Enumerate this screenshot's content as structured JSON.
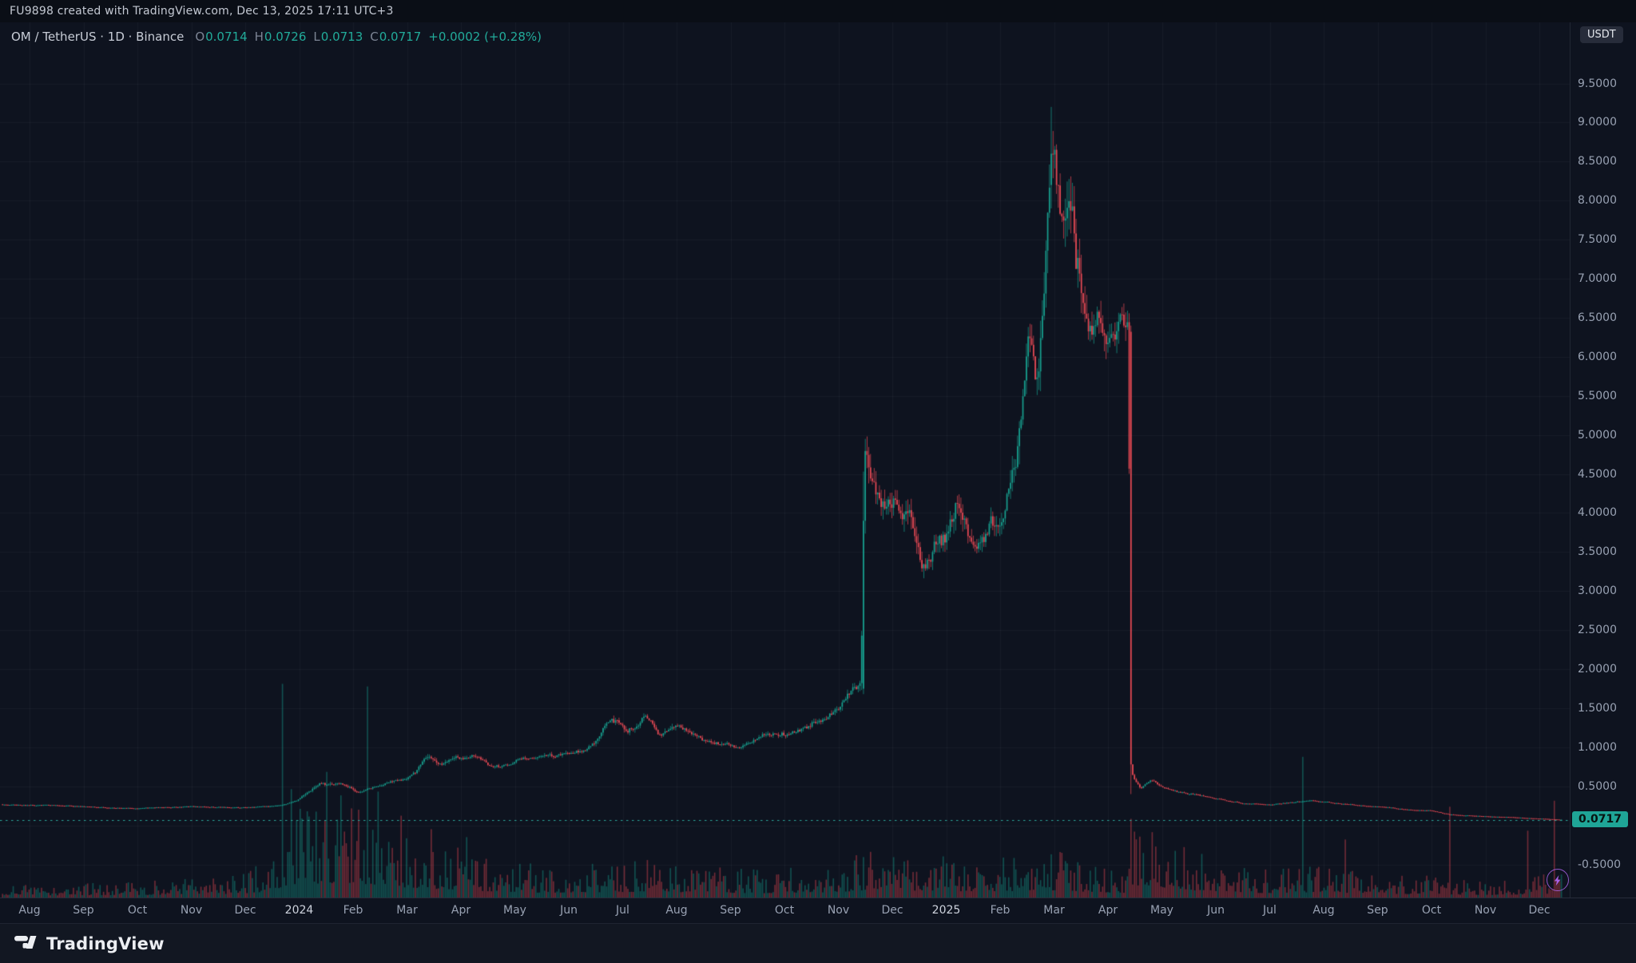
{
  "topbar": {
    "attribution": "FU9898 created with TradingView.com, Dec 13, 2025 17:11 UTC+3"
  },
  "legend": {
    "symbol_title": "OM / TetherUS · 1D · Binance",
    "ohlc": [
      {
        "label": "O",
        "value": "0.0714"
      },
      {
        "label": "H",
        "value": "0.0726"
      },
      {
        "label": "L",
        "value": "0.0713"
      },
      {
        "label": "C",
        "value": "0.0717"
      }
    ],
    "change": "+0.0002 (+0.28%)"
  },
  "price_scale": {
    "currency_badge": "USDT",
    "last_price_label": "0.0717",
    "ticks": [
      "9.5000",
      "9.0000",
      "8.5000",
      "8.0000",
      "7.5000",
      "7.0000",
      "6.5000",
      "6.0000",
      "5.5000",
      "5.0000",
      "4.5000",
      "4.0000",
      "3.5000",
      "3.0000",
      "2.5000",
      "2.0000",
      "1.5000",
      "1.0000",
      "0.5000",
      "-0.5000"
    ]
  },
  "footer": {
    "brand": "TradingView"
  },
  "colors": {
    "background": "#0e131f",
    "grid": "rgba(140,152,177,0.07)",
    "up": "#17a08f",
    "down": "#ea4a55",
    "vol_up": "rgba(23,160,143,0.45)",
    "vol_down": "rgba(234,74,85,0.45)",
    "price_line": "#2aa79b",
    "axis_text": "#98a1b2",
    "flash_icon": "#a761e6"
  },
  "chart_data": {
    "type": "candlestick",
    "title": "OM / TetherUS 1D Binance",
    "quote_currency": "USDT",
    "last_close": 0.0717,
    "y_axis": {
      "tick_step": 0.5,
      "visible_range": [
        -0.9,
        10.2
      ],
      "grid": true
    },
    "x_axis": {
      "months": [
        "Aug",
        "Sep",
        "Oct",
        "Nov",
        "Dec",
        "2024",
        "Feb",
        "Mar",
        "Apr",
        "May",
        "Jun",
        "Jul",
        "Aug",
        "Sep",
        "Oct",
        "Nov",
        "Dec",
        "2025",
        "Feb",
        "Mar",
        "Apr",
        "May",
        "Jun",
        "Jul",
        "Aug",
        "Sep",
        "Oct",
        "Nov",
        "Dec"
      ]
    },
    "start_m": -0.5,
    "end_m": 28.42,
    "seed": 7,
    "price_keyframes": [
      [
        -0.5,
        0.27,
        0.035
      ],
      [
        0,
        0.26,
        0.035
      ],
      [
        1,
        0.235,
        0.035
      ],
      [
        2,
        0.22,
        0.03
      ],
      [
        3,
        0.245,
        0.035
      ],
      [
        4,
        0.225,
        0.035
      ],
      [
        4.7,
        0.25,
        0.05
      ],
      [
        5,
        0.32,
        0.07
      ],
      [
        5.4,
        0.55,
        0.08
      ],
      [
        5.8,
        0.52,
        0.06
      ],
      [
        6.1,
        0.44,
        0.06
      ],
      [
        6.5,
        0.5,
        0.05
      ],
      [
        7,
        0.62,
        0.06
      ],
      [
        7.4,
        0.92,
        0.07
      ],
      [
        7.6,
        0.8,
        0.06
      ],
      [
        8,
        0.86,
        0.05
      ],
      [
        8.3,
        0.95,
        0.05
      ],
      [
        8.6,
        0.78,
        0.05
      ],
      [
        9,
        0.82,
        0.045
      ],
      [
        9.5,
        0.88,
        0.045
      ],
      [
        10,
        0.96,
        0.05
      ],
      [
        10.5,
        1.12,
        0.05
      ],
      [
        10.8,
        1.32,
        0.055
      ],
      [
        11.1,
        1.22,
        0.05
      ],
      [
        11.4,
        1.38,
        0.05
      ],
      [
        11.7,
        1.18,
        0.05
      ],
      [
        12,
        1.3,
        0.05
      ],
      [
        12.4,
        1.12,
        0.045
      ],
      [
        12.8,
        1.02,
        0.045
      ],
      [
        13.1,
        0.97,
        0.04
      ],
      [
        13.5,
        1.1,
        0.04
      ],
      [
        14,
        1.18,
        0.04
      ],
      [
        14.5,
        1.3,
        0.045
      ],
      [
        15,
        1.52,
        0.05
      ],
      [
        15.4,
        1.72,
        0.06
      ],
      [
        15.5,
        3.9,
        0.09
      ],
      [
        15.7,
        3.55,
        0.07
      ],
      [
        16,
        3.85,
        0.06
      ],
      [
        16.3,
        4.12,
        0.06
      ],
      [
        16.55,
        3.42,
        0.06
      ],
      [
        16.8,
        3.78,
        0.05
      ],
      [
        17,
        3.92,
        0.05
      ],
      [
        17.2,
        4.35,
        0.06
      ],
      [
        17.5,
        3.68,
        0.05
      ],
      [
        17.8,
        3.86,
        0.05
      ],
      [
        18.1,
        4.05,
        0.05
      ],
      [
        18.35,
        5.2,
        0.07
      ],
      [
        18.55,
        6.25,
        0.07
      ],
      [
        18.7,
        5.85,
        0.06
      ],
      [
        18.9,
        7.9,
        0.07
      ],
      [
        18.98,
        8.6,
        0.07
      ],
      [
        19.15,
        7.5,
        0.07
      ],
      [
        19.3,
        7.95,
        0.06
      ],
      [
        19.5,
        6.95,
        0.06
      ],
      [
        19.7,
        6.35,
        0.05
      ],
      [
        19.85,
        6.65,
        0.05
      ],
      [
        20,
        6.3,
        0.045
      ],
      [
        20.38,
        6.33,
        0.04
      ],
      [
        20.46,
        0.78,
        0.06
      ],
      [
        20.6,
        0.56,
        0.05
      ],
      [
        20.8,
        0.63,
        0.045
      ],
      [
        21,
        0.52,
        0.04
      ],
      [
        21.5,
        0.41,
        0.04
      ],
      [
        22,
        0.335,
        0.035
      ],
      [
        22.5,
        0.285,
        0.035
      ],
      [
        23,
        0.26,
        0.035
      ],
      [
        23.5,
        0.3,
        0.04
      ],
      [
        23.8,
        0.325,
        0.04
      ],
      [
        24.3,
        0.29,
        0.035
      ],
      [
        25,
        0.24,
        0.03
      ],
      [
        25.5,
        0.205,
        0.03
      ],
      [
        26,
        0.185,
        0.03
      ],
      [
        26.35,
        0.135,
        0.04
      ],
      [
        26.7,
        0.125,
        0.03
      ],
      [
        27,
        0.115,
        0.03
      ],
      [
        27.5,
        0.1,
        0.03
      ],
      [
        28,
        0.086,
        0.03
      ],
      [
        28.42,
        0.0717,
        0.025
      ]
    ],
    "special_candles": [
      {
        "m": 15.47,
        "o": 1.75,
        "h": 4.53,
        "l": 1.68,
        "c": 3.9
      },
      {
        "m": 18.95,
        "o": 8.2,
        "h": 9.2,
        "l": 7.9,
        "c": 8.6
      },
      {
        "m": 20.42,
        "o": 6.32,
        "h": 6.4,
        "l": 0.4,
        "c": 0.78
      },
      {
        "m": 28.42,
        "o": 0.0714,
        "h": 0.0726,
        "l": 0.0713,
        "c": 0.0717
      }
    ],
    "volume_keyframes": [
      [
        -0.5,
        0.04
      ],
      [
        2,
        0.05
      ],
      [
        4,
        0.08
      ],
      [
        4.5,
        0.13
      ],
      [
        5,
        0.28
      ],
      [
        5.6,
        0.3
      ],
      [
        6.2,
        0.28
      ],
      [
        6.8,
        0.22
      ],
      [
        7.5,
        0.18
      ],
      [
        8.5,
        0.13
      ],
      [
        9.5,
        0.1
      ],
      [
        10.5,
        0.11
      ],
      [
        11.5,
        0.12
      ],
      [
        12.5,
        0.1
      ],
      [
        13.5,
        0.09
      ],
      [
        14.5,
        0.1
      ],
      [
        15.3,
        0.13
      ],
      [
        15.7,
        0.18
      ],
      [
        16.2,
        0.15
      ],
      [
        17,
        0.13
      ],
      [
        18,
        0.13
      ],
      [
        19,
        0.15
      ],
      [
        19.8,
        0.11
      ],
      [
        20.3,
        0.09
      ],
      [
        20.6,
        0.28
      ],
      [
        21.2,
        0.18
      ],
      [
        22,
        0.12
      ],
      [
        23,
        0.09
      ],
      [
        24,
        0.11
      ],
      [
        25,
        0.07
      ],
      [
        26,
        0.07
      ],
      [
        27,
        0.05
      ],
      [
        28,
        0.07
      ],
      [
        28.42,
        0.09
      ]
    ],
    "volume_spikes": [
      [
        4.68,
        1.0
      ],
      [
        4.85,
        0.5
      ],
      [
        5.15,
        0.4
      ],
      [
        5.5,
        0.55
      ],
      [
        5.78,
        0.45
      ],
      [
        6.26,
        0.95
      ],
      [
        6.45,
        0.5
      ],
      [
        6.9,
        0.4
      ],
      [
        7.45,
        0.33
      ],
      [
        8.1,
        0.28
      ],
      [
        15.47,
        0.2
      ],
      [
        20.42,
        0.35
      ],
      [
        20.5,
        0.3
      ],
      [
        23.6,
        0.65
      ],
      [
        24.4,
        0.28
      ],
      [
        26.35,
        0.45
      ],
      [
        27.8,
        0.3
      ],
      [
        28.28,
        0.48
      ]
    ]
  }
}
